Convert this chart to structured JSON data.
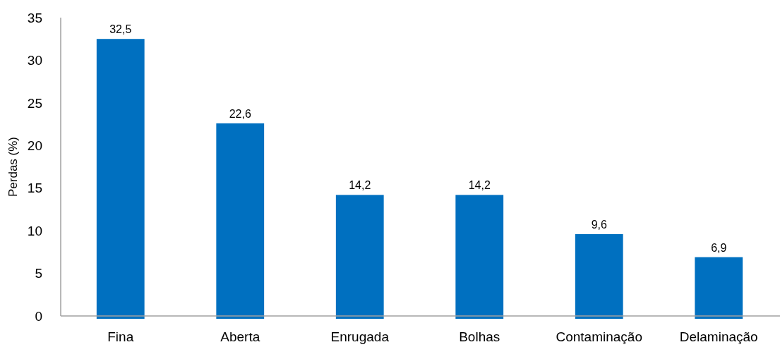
{
  "chart_data": {
    "type": "bar",
    "ylabel": "Perdas (%)",
    "categories": [
      "Fina",
      "Aberta",
      "Enrugada",
      "Bolhas",
      "Contaminação",
      "Delaminação"
    ],
    "values": [
      32.5,
      22.6,
      14.2,
      14.2,
      9.6,
      6.9
    ],
    "value_labels": [
      "32,5",
      "22,6",
      "14,2",
      "14,2",
      "9,6",
      "6,9"
    ],
    "color": "#0070c0",
    "ylim": [
      0,
      35
    ],
    "yticks": [
      0,
      5,
      10,
      15,
      20,
      25,
      30,
      35
    ],
    "grid": false
  }
}
